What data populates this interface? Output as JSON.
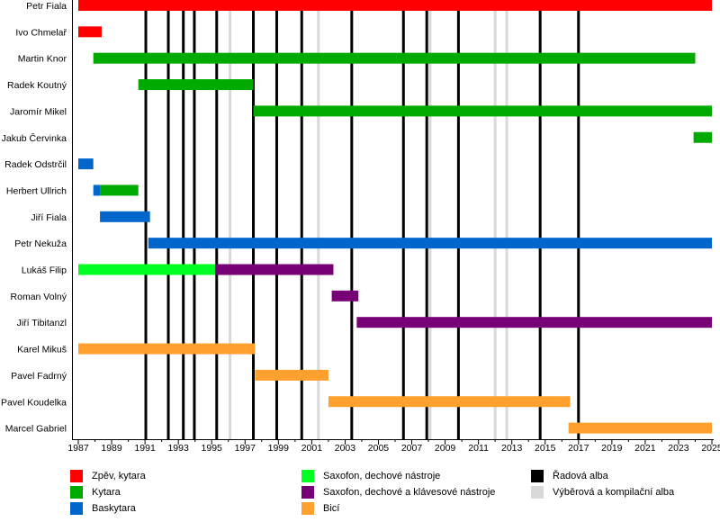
{
  "chart_data": {
    "type": "timeline",
    "x_range": [
      1987,
      2025
    ],
    "x_ticks": [
      1987,
      1989,
      1991,
      1993,
      1995,
      1997,
      1999,
      2001,
      2003,
      2005,
      2007,
      2009,
      2011,
      2013,
      2015,
      2017,
      2019,
      2021,
      2023,
      2025
    ],
    "roles": {
      "vocals_guitar": {
        "label": "Zpěv, kytara",
        "color": "#ff0000"
      },
      "guitar": {
        "label": "Kytara",
        "color": "#00aa00"
      },
      "bass": {
        "label": "Baskytara",
        "color": "#0066cc"
      },
      "sax_winds": {
        "label": "Saxofon, dechové nástroje",
        "color": "#00ff22"
      },
      "sax_winds_keys": {
        "label": "Saxofon, dechové a klávesové nástroje",
        "color": "#770077"
      },
      "drums": {
        "label": "Bicí",
        "color": "#ffa02f"
      },
      "studio_albums": {
        "label": "Řadová alba",
        "color": "#000000"
      },
      "compilations": {
        "label": "Výběrová a kompilační alba",
        "color": "#d9d9d9"
      }
    },
    "members": [
      {
        "name": "Petr Fiala",
        "periods": [
          {
            "role": "vocals_guitar",
            "from": 1987.0,
            "to": 2025.0
          }
        ]
      },
      {
        "name": "Ivo Chmelař",
        "periods": [
          {
            "role": "vocals_guitar",
            "from": 1987.0,
            "to": 1988.4
          }
        ]
      },
      {
        "name": "Martin Knor",
        "periods": [
          {
            "role": "guitar",
            "from": 1987.9,
            "to": 2024.0
          }
        ]
      },
      {
        "name": "Radek Koutný",
        "periods": [
          {
            "role": "guitar",
            "from": 1990.6,
            "to": 1997.5
          }
        ]
      },
      {
        "name": "Jaromír Mikel",
        "periods": [
          {
            "role": "guitar",
            "from": 1997.5,
            "to": 2025.0
          }
        ]
      },
      {
        "name": "Jakub Červinka",
        "periods": [
          {
            "role": "guitar",
            "from": 2023.9,
            "to": 2025.0
          }
        ]
      },
      {
        "name": "Radek Odstrčil",
        "periods": [
          {
            "role": "bass",
            "from": 1987.0,
            "to": 1987.9
          }
        ]
      },
      {
        "name": "Herbert Ullrich",
        "periods": [
          {
            "role": "bass",
            "from": 1987.9,
            "to": 1988.3
          },
          {
            "role": "guitar",
            "from": 1988.3,
            "to": 1990.6
          }
        ]
      },
      {
        "name": "Jiří Fiala",
        "periods": [
          {
            "role": "bass",
            "from": 1988.3,
            "to": 1991.3
          }
        ]
      },
      {
        "name": "Petr Nekuža",
        "periods": [
          {
            "role": "bass",
            "from": 1991.2,
            "to": 2025.0
          }
        ]
      },
      {
        "name": "Lukáš Filip",
        "periods": [
          {
            "role": "sax_winds",
            "from": 1987.0,
            "to": 1995.2
          },
          {
            "role": "sax_winds_keys",
            "from": 1995.2,
            "to": 2002.3
          }
        ]
      },
      {
        "name": "Roman Volný",
        "periods": [
          {
            "role": "sax_winds_keys",
            "from": 2002.2,
            "to": 2003.8
          }
        ]
      },
      {
        "name": "Jiří Tibitanzl",
        "periods": [
          {
            "role": "sax_winds_keys",
            "from": 2003.7,
            "to": 2025.0
          }
        ]
      },
      {
        "name": "Karel Mikuš",
        "periods": [
          {
            "role": "drums",
            "from": 1987.0,
            "to": 1997.6
          }
        ]
      },
      {
        "name": "Pavel Fadrný",
        "periods": [
          {
            "role": "drums",
            "from": 1997.6,
            "to": 2002.0
          }
        ]
      },
      {
        "name": "Pavel Koudelka",
        "periods": [
          {
            "role": "drums",
            "from": 2002.0,
            "to": 2016.5
          }
        ]
      },
      {
        "name": "Marcel Gabriel",
        "periods": [
          {
            "role": "drums",
            "from": 2016.4,
            "to": 2025.0
          }
        ]
      }
    ],
    "studio_albums": [
      1991.05,
      1992.4,
      1993.3,
      1993.96,
      1995.3,
      1997.5,
      1998.9,
      2000.4,
      2003.4,
      2006.5,
      2007.9,
      2009.8,
      2014.7,
      2017.0
    ],
    "compilations": [
      1996.1,
      2001.4,
      2008.1,
      2012.0,
      2012.7
    ],
    "legend": [
      [
        "vocals_guitar",
        "guitar",
        "bass"
      ],
      [
        "sax_winds",
        "sax_winds_keys",
        "drums"
      ],
      [
        "studio_albums",
        "compilations"
      ]
    ]
  }
}
